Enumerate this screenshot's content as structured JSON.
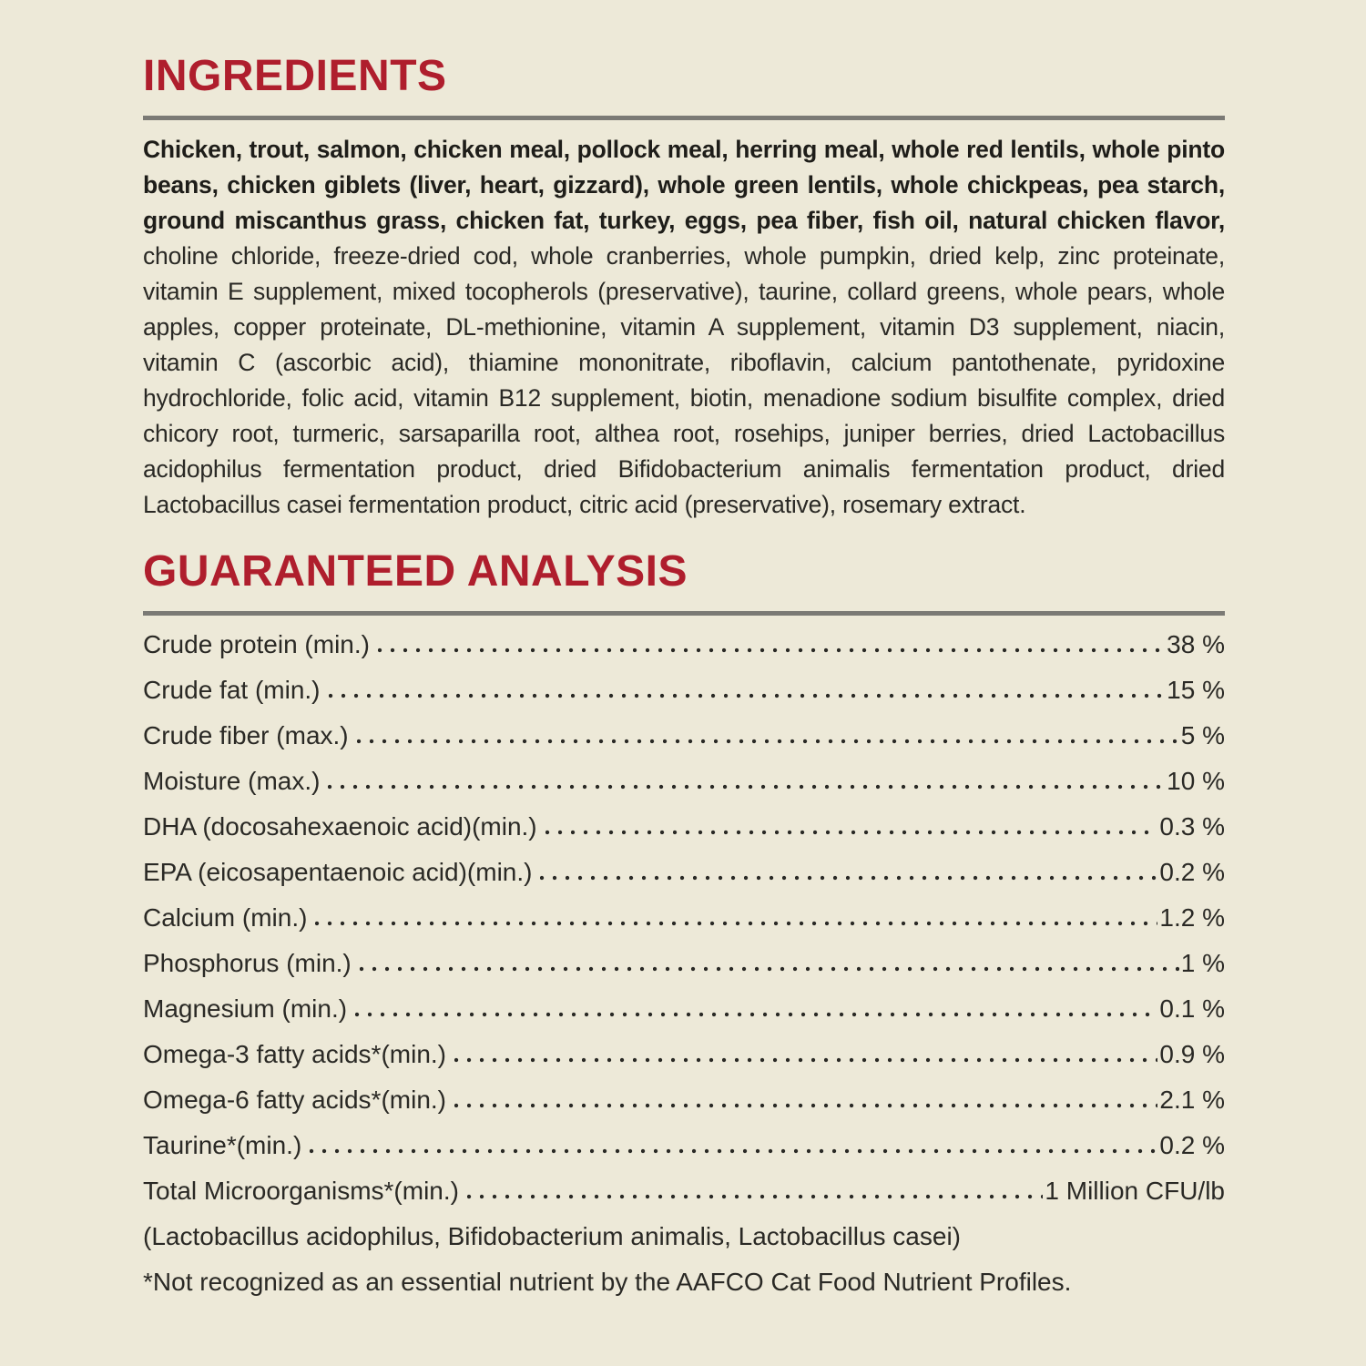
{
  "page": {
    "colors": {
      "background": "#EDE9D8",
      "accent_red": "#AF1E2D",
      "rule_gray": "#7B7A75",
      "text": "#2A2925"
    }
  },
  "ingredients": {
    "heading": "INGREDIENTS",
    "bold_text": "Chicken, trout, salmon, chicken meal, pollock meal, herring meal, whole red lentils, whole pinto beans, chicken giblets (liver, heart, gizzard), whole green lentils, whole chickpeas, pea starch, ground miscanthus grass, chicken fat, turkey, eggs, pea fiber, fish oil, natural chicken flavor,",
    "regular_text": "choline chloride, freeze-dried cod, whole cranberries, whole pumpkin, dried kelp, zinc proteinate, vitamin E supplement, mixed tocopherols (preservative), taurine, collard greens, whole pears, whole apples, copper proteinate, DL-methionine, vitamin A supplement, vitamin D3 supplement, niacin, vitamin C (ascorbic acid), thiamine mononitrate, riboflavin, calcium pantothenate, pyridoxine hydrochloride, folic acid, vitamin B12 supplement, biotin, menadione sodium bisulfite complex, dried chicory root, turmeric, sarsaparilla root, althea root, rosehips, juniper berries, dried Lactobacillus acidophilus fermentation product, dried Bifidobacterium animalis fermentation product, dried Lactobacillus casei fermentation product, citric acid (preservative), rosemary extract."
  },
  "guaranteed_analysis": {
    "heading": "GUARANTEED ANALYSIS",
    "rows": [
      {
        "label": "Crude protein (min.)",
        "value": "38 %"
      },
      {
        "label": "Crude fat (min.)",
        "value": "15 %"
      },
      {
        "label": "Crude fiber (max.)",
        "value": "5 %"
      },
      {
        "label": "Moisture (max.)",
        "value": "10 %"
      },
      {
        "label": "DHA (docosahexaenoic acid)(min.)",
        "value": "0.3 %"
      },
      {
        "label": "EPA (eicosapentaenoic acid)(min.)",
        "value": "0.2 %"
      },
      {
        "label": "Calcium (min.)",
        "value": "1.2 %"
      },
      {
        "label": "Phosphorus (min.)",
        "value": "1 %"
      },
      {
        "label": "Magnesium (min.)",
        "value": "0.1 %"
      },
      {
        "label": "Omega-3 fatty acids*(min.)",
        "value": "0.9 %"
      },
      {
        "label": "Omega-6 fatty acids*(min.)",
        "value": "2.1 %"
      },
      {
        "label": "Taurine*(min.)",
        "value": "0.2 %"
      },
      {
        "label": "Total Microorganisms*(min.)",
        "value": "1 Million CFU/lb"
      }
    ],
    "microorganisms_note": "(Lactobacillus acidophilus, Bifidobacterium animalis, Lactobacillus casei)",
    "footnote": "*Not recognized as an essential nutrient by the AAFCO Cat Food Nutrient Profiles."
  }
}
